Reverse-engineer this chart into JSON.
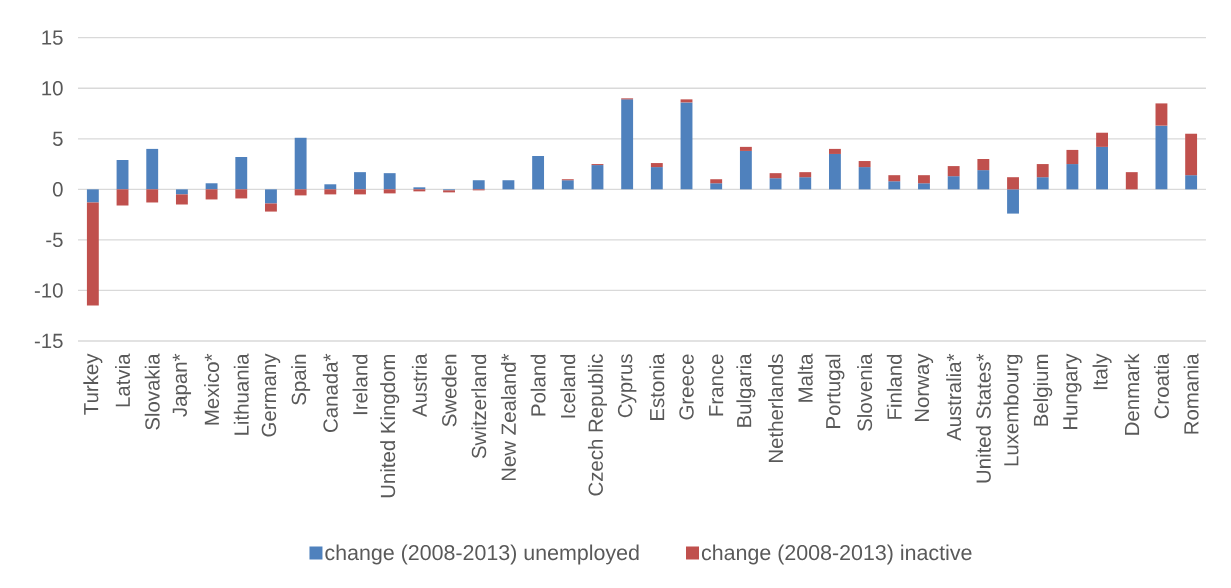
{
  "chart_data": {
    "type": "bar",
    "stacked": true,
    "categories": [
      "Turkey",
      "Latvia",
      "Slovakia",
      "Japan*",
      "Mexico*",
      "Lithuania",
      "Germany",
      "Spain",
      "Canada*",
      "Ireland",
      "United Kingdom",
      "Austria",
      "Sweden",
      "Switzerland",
      "New Zealand*",
      "Poland",
      "Iceland",
      "Czech Republic",
      "Cyprus",
      "Estonia",
      "Greece",
      "France",
      "Bulgaria",
      "Netherlands",
      "Malta",
      "Portugal",
      "Slovenia",
      "Finland",
      "Norway",
      "Australia*",
      "United States*",
      "Luxembourg",
      "Belgium",
      "Hungary",
      "Italy",
      "Denmark",
      "Croatia",
      "Romania"
    ],
    "series": [
      {
        "name": "change (2008-2013) unemployed",
        "color": "#4f81bd",
        "values": [
          -1.3,
          2.9,
          4.0,
          -0.5,
          0.6,
          3.2,
          -1.4,
          5.1,
          0.5,
          1.7,
          1.6,
          0.2,
          -0.1,
          0.9,
          0.9,
          3.3,
          0.9,
          2.4,
          8.9,
          2.2,
          8.6,
          0.6,
          3.8,
          1.1,
          1.2,
          3.5,
          2.2,
          0.8,
          0.6,
          1.3,
          1.9,
          -2.4,
          1.2,
          2.5,
          4.2,
          0,
          6.3,
          1.4
        ]
      },
      {
        "name": "change (2008-2013) inactive",
        "color": "#c0504d",
        "values": [
          -10.2,
          -1.6,
          -1.3,
          -1.0,
          -1.0,
          -0.9,
          -0.8,
          -0.6,
          -0.5,
          -0.5,
          -0.4,
          -0.2,
          -0.2,
          -0.1,
          0,
          0,
          0.1,
          0.1,
          0.1,
          0.4,
          0.3,
          0.4,
          0.4,
          0.5,
          0.5,
          0.5,
          0.6,
          0.6,
          0.8,
          1.0,
          1.1,
          1.2,
          1.3,
          1.4,
          1.4,
          1.7,
          2.2,
          4.1
        ]
      }
    ],
    "ylim": [
      -15,
      15
    ],
    "yticks": [
      -15,
      -10,
      -5,
      0,
      5,
      10,
      15
    ],
    "grid": "y",
    "legend": "bottom"
  }
}
